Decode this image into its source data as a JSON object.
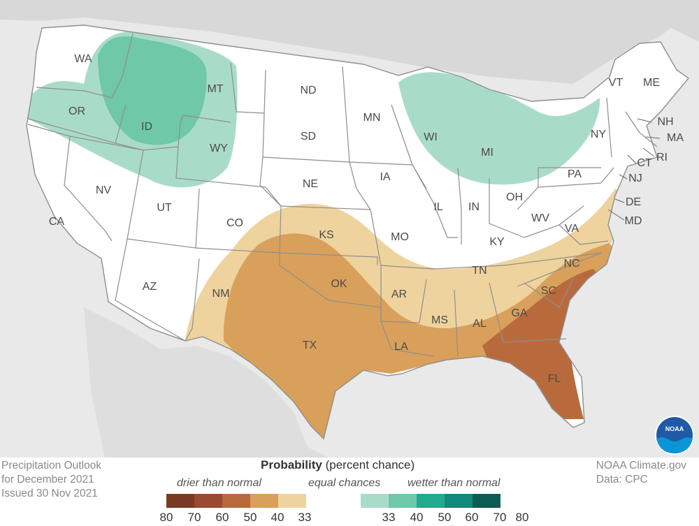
{
  "caption": {
    "line1": "Precipitation Outlook",
    "line2": "for December 2021",
    "line3": "Issued 30 Nov 2021"
  },
  "credits": {
    "line1": "NOAA Climate.gov",
    "line2": "Data: CPC"
  },
  "logo": {
    "text": "NOAA",
    "icon": "noaa-logo-icon"
  },
  "legend": {
    "title_bold": "Probability",
    "title_rest": " (percent chance)",
    "drier_label": "drier than normal",
    "equal_label": "equal chances",
    "wetter_label": "wetter than normal",
    "colors": [
      "#7a3b22",
      "#9a4a2e",
      "#b96a3d",
      "#d9a05b",
      "#efd39e",
      "#ffffff",
      "#ffffff",
      "#a9dcc8",
      "#6fc8a8",
      "#20ab8f",
      "#12897a",
      "#0c5c55"
    ],
    "ticks": [
      "80",
      "70",
      "60",
      "50",
      "40",
      "33",
      "33",
      "40",
      "50",
      "60",
      "70",
      "80"
    ]
  },
  "states": [
    {
      "abbr": "WA"
    },
    {
      "abbr": "OR"
    },
    {
      "abbr": "ID"
    },
    {
      "abbr": "MT"
    },
    {
      "abbr": "WY"
    },
    {
      "abbr": "CA"
    },
    {
      "abbr": "NV"
    },
    {
      "abbr": "UT"
    },
    {
      "abbr": "CO"
    },
    {
      "abbr": "AZ"
    },
    {
      "abbr": "NM"
    },
    {
      "abbr": "ND"
    },
    {
      "abbr": "SD"
    },
    {
      "abbr": "NE"
    },
    {
      "abbr": "KS"
    },
    {
      "abbr": "OK"
    },
    {
      "abbr": "TX"
    },
    {
      "abbr": "MN"
    },
    {
      "abbr": "IA"
    },
    {
      "abbr": "MO"
    },
    {
      "abbr": "AR"
    },
    {
      "abbr": "LA"
    },
    {
      "abbr": "WI"
    },
    {
      "abbr": "IL"
    },
    {
      "abbr": "MI"
    },
    {
      "abbr": "IN"
    },
    {
      "abbr": "OH"
    },
    {
      "abbr": "KY"
    },
    {
      "abbr": "TN"
    },
    {
      "abbr": "MS"
    },
    {
      "abbr": "AL"
    },
    {
      "abbr": "GA"
    },
    {
      "abbr": "FL"
    },
    {
      "abbr": "SC"
    },
    {
      "abbr": "NC"
    },
    {
      "abbr": "VA"
    },
    {
      "abbr": "WV"
    },
    {
      "abbr": "PA"
    },
    {
      "abbr": "NY"
    },
    {
      "abbr": "VT"
    },
    {
      "abbr": "ME"
    },
    {
      "abbr": "NH"
    },
    {
      "abbr": "MA"
    },
    {
      "abbr": "RI"
    },
    {
      "abbr": "CT"
    },
    {
      "abbr": "NJ"
    },
    {
      "abbr": "DE"
    },
    {
      "abbr": "MD"
    }
  ]
}
